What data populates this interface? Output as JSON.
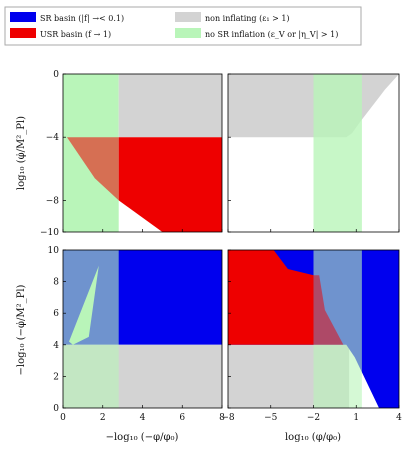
{
  "legend": {
    "entries": [
      {
        "key": "sr",
        "label": "SR basin (|f| →< 0.1)",
        "color": "#0000ee"
      },
      {
        "key": "usr",
        "label": "USR basin (f → 1)",
        "color": "#ee0000"
      },
      {
        "key": "noninf",
        "label": "non inflating (ε₁ > 1)",
        "color": "#d3d3d3"
      },
      {
        "key": "nosr",
        "label": "no SR inflation (ε_V or |η_V| > 1)",
        "color": "#b9f5b9"
      }
    ]
  },
  "axes": {
    "ylabel_top": "log₁₀ (φ̇/M²_Pl)",
    "ylabel_bottom": "−log₁₀ (−φ̇/M²_Pl)",
    "xlabel_left": "−log₁₀ (−φ/φ₀)",
    "xlabel_right": "log₁₀ (φ/φ₀)",
    "top_yticks": [
      "0",
      "−4",
      "−8",
      "−10"
    ],
    "bottom_yticks": [
      "10",
      "8",
      "6",
      "4",
      "2",
      "0"
    ],
    "left_xticks": [
      "0",
      "2",
      "4",
      "6",
      "8"
    ],
    "right_xticks": [
      "−8",
      "−5",
      "−2",
      "1",
      "4"
    ]
  },
  "chart_data": [
    {
      "type": "heatmap",
      "panel": "top-left",
      "xlim": [
        0,
        8
      ],
      "ylim": [
        -10,
        0
      ],
      "regions": [
        {
          "name": "nosr",
          "color": "#b9f5b9",
          "opacity": 1,
          "points": [
            [
              0,
              0
            ],
            [
              2.8,
              0
            ],
            [
              2.8,
              -10
            ],
            [
              0,
              -10
            ]
          ]
        },
        {
          "name": "noninf",
          "color": "#d3d3d3",
          "opacity": 1,
          "points": [
            [
              2.8,
              0
            ],
            [
              8,
              0
            ],
            [
              8,
              -4
            ],
            [
              2.8,
              -4
            ]
          ]
        },
        {
          "name": "usr",
          "color": "#ee0000",
          "opacity": 1,
          "points": [
            [
              2.8,
              -4
            ],
            [
              8,
              -4
            ],
            [
              8,
              -10
            ],
            [
              5.0,
              -10
            ],
            [
              2.8,
              -8.0
            ]
          ]
        },
        {
          "name": "usr",
          "color": "#ee0000",
          "opacity": 0.55,
          "points": [
            [
              0.2,
              -4
            ],
            [
              2.8,
              -4
            ],
            [
              2.8,
              -8.0
            ],
            [
              1.6,
              -6.6
            ]
          ]
        }
      ]
    },
    {
      "type": "heatmap",
      "panel": "top-right",
      "xlim": [
        -8,
        4
      ],
      "ylim": [
        -10,
        0
      ],
      "regions": [
        {
          "name": "noninf",
          "color": "#d3d3d3",
          "opacity": 1,
          "points": [
            [
              -8,
              0
            ],
            [
              4,
              0
            ],
            [
              3.0,
              -1.0
            ],
            [
              1.3,
              -3.0
            ],
            [
              0.7,
              -3.75
            ],
            [
              0.3,
              -4.0
            ],
            [
              -8,
              -4
            ]
          ]
        },
        {
          "name": "nosr",
          "color": "#b9f5b9",
          "opacity": 0.8,
          "points": [
            [
              -2,
              0
            ],
            [
              1.4,
              0
            ],
            [
              1.4,
              -10
            ],
            [
              -2,
              -10
            ]
          ]
        }
      ]
    },
    {
      "type": "heatmap",
      "panel": "bottom-left",
      "xlim": [
        0,
        8
      ],
      "ylim": [
        0,
        10
      ],
      "regions": [
        {
          "name": "sr",
          "color": "#0000ee",
          "opacity": 1,
          "points": [
            [
              0,
              10
            ],
            [
              8,
              10
            ],
            [
              8,
              4
            ],
            [
              0,
              4
            ]
          ]
        },
        {
          "name": "noninf",
          "color": "#d3d3d3",
          "opacity": 1,
          "points": [
            [
              0,
              4
            ],
            [
              8,
              4
            ],
            [
              8,
              0
            ],
            [
              0,
              0
            ]
          ]
        },
        {
          "name": "nosr",
          "color": "#b9f5b9",
          "opacity": 0.6,
          "points": [
            [
              0,
              10
            ],
            [
              2.8,
              10
            ],
            [
              2.8,
              0
            ],
            [
              0,
              0
            ]
          ]
        },
        {
          "name": "nosr",
          "color": "#b9f5b9",
          "opacity": 1,
          "points": [
            [
              0.3,
              4.2
            ],
            [
              1.8,
              9.0
            ],
            [
              1.3,
              4.5
            ],
            [
              0.5,
              4.0
            ]
          ]
        }
      ]
    },
    {
      "type": "heatmap",
      "panel": "bottom-right",
      "xlim": [
        -8,
        4
      ],
      "ylim": [
        0,
        10
      ],
      "regions": [
        {
          "name": "noninf",
          "color": "#d3d3d3",
          "opacity": 1,
          "points": [
            [
              -8,
              4
            ],
            [
              0.5,
              4
            ],
            [
              0.5,
              0
            ],
            [
              -8,
              0
            ]
          ]
        },
        {
          "name": "sr",
          "color": "#0000ee",
          "opacity": 1,
          "points": [
            [
              -8,
              10
            ],
            [
              4,
              10
            ],
            [
              4,
              0
            ],
            [
              2.6,
              0
            ],
            [
              0.9,
              3.2
            ],
            [
              0.3,
              4.0
            ],
            [
              -8,
              4
            ]
          ]
        },
        {
          "name": "usr",
          "color": "#ee0000",
          "opacity": 1,
          "points": [
            [
              -8,
              10
            ],
            [
              -4.8,
              10
            ],
            [
              -3.8,
              8.8
            ],
            [
              -2,
              8.4
            ],
            [
              -2,
              4
            ],
            [
              -8,
              4
            ]
          ]
        },
        {
          "name": "nosr",
          "color": "#b9f5b9",
          "opacity": 0.6,
          "points": [
            [
              -2,
              10
            ],
            [
              1.4,
              10
            ],
            [
              1.4,
              0
            ],
            [
              -2,
              0
            ]
          ]
        },
        {
          "name": "usr",
          "color": "#ee0000",
          "opacity": 0.5,
          "points": [
            [
              -2,
              8.4
            ],
            [
              -1.6,
              8.4
            ],
            [
              -1.2,
              6.2
            ],
            [
              0.1,
              4.0
            ],
            [
              -2,
              4.0
            ]
          ]
        }
      ]
    }
  ]
}
